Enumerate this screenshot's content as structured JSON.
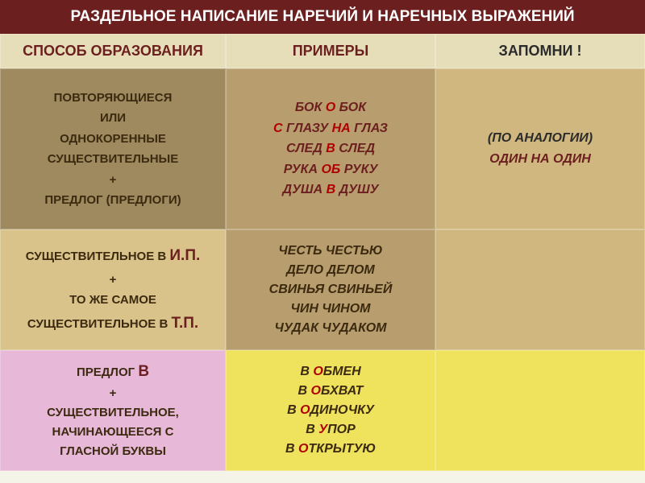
{
  "title": "РАЗДЕЛЬНОЕ НАПИСАНИЕ НАРЕЧИЙ И НАРЕЧНЫХ ВЫРАЖЕНИЙ",
  "headers": {
    "col1": "СПОСОБ ОБРАЗОВАНИЯ",
    "col2": "ПРИМЕРЫ",
    "col3": "ЗАПОМНИ !"
  },
  "rows": [
    {
      "formation": {
        "l1": "ПОВТОРЯЮЩИЕСЯ",
        "l2": "ИЛИ",
        "l3": "ОДНОКОРЕННЫЕ",
        "l4": "СУЩЕСТВИТЕЛЬНЫЕ",
        "l5": "+",
        "l6": "ПРЕДЛОГ (ПРЕДЛОГИ)"
      },
      "examples": {
        "l1a": "БОК",
        "l1b": "О",
        "l1c": "БОК",
        "l2a": "С",
        "l2b": "ГЛАЗУ",
        "l2c": "НА",
        "l2d": "ГЛАЗ",
        "l3a": "СЛЕД",
        "l3b": "В",
        "l3c": "СЛЕД",
        "l4a": "РУКА",
        "l4b": "ОБ",
        "l4c": "РУКУ",
        "l5a": "ДУША",
        "l5b": "В",
        "l5c": "ДУШУ"
      },
      "remember": {
        "l1": "(ПО АНАЛОГИИ)",
        "l2": "ОДИН НА ОДИН"
      }
    },
    {
      "formation": {
        "l1a": "СУЩЕСТВИТЕЛЬНОЕ В",
        "l1b": "И.П.",
        "l2": "+",
        "l3": "ТО ЖЕ САМОЕ",
        "l4a": "СУЩЕСТВИТЕЛЬНОЕ В",
        "l4b": "Т.П."
      },
      "examples": {
        "l1": "ЧЕСТЬ ЧЕСТЬЮ",
        "l2": "ДЕЛО ДЕЛОМ",
        "l3": "СВИНЬЯ СВИНЬЕЙ",
        "l4": "ЧИН ЧИНОМ",
        "l5": "ЧУДАК ЧУДАКОМ"
      }
    },
    {
      "formation": {
        "l1a": "ПРЕДЛОГ",
        "l1b": "В",
        "l2": "+",
        "l3": "СУЩЕСТВИТЕЛЬНОЕ,",
        "l4": "НАЧИНАЮЩЕЕСЯ С",
        "l5": "ГЛАСНОЙ БУКВЫ"
      },
      "examples": {
        "l1a": "В",
        "l1b": "О",
        "l1c": "БМЕН",
        "l2a": "В",
        "l2b": "О",
        "l2c": "БХВАТ",
        "l3a": "В",
        "l3b": "О",
        "l3c": "ДИНОЧКУ",
        "l4a": "В",
        "l4b": "У",
        "l4c": "ПОР",
        "l5a": "В",
        "l5b": "О",
        "l5c": "ТКРЫТУЮ"
      }
    }
  ],
  "colors": {
    "title_bg": "#6c1f1f",
    "header_bg": "#e6deb8",
    "row1_a": "#9e8a5e",
    "row1_b": "#b89e6e",
    "row1_c": "#cfb77f",
    "row2_a": "#d9c38b",
    "row2_b": "#b89e6e",
    "row2_c": "#cfb77f",
    "row3_a": "#e8b8d8",
    "row3_bc": "#efe35e",
    "emphasis": "#b00000",
    "dark_red": "#6c1f1f"
  },
  "font_sizes": {
    "title": 19,
    "header": 18,
    "body": 15,
    "examples": 16,
    "big_case": 19
  }
}
